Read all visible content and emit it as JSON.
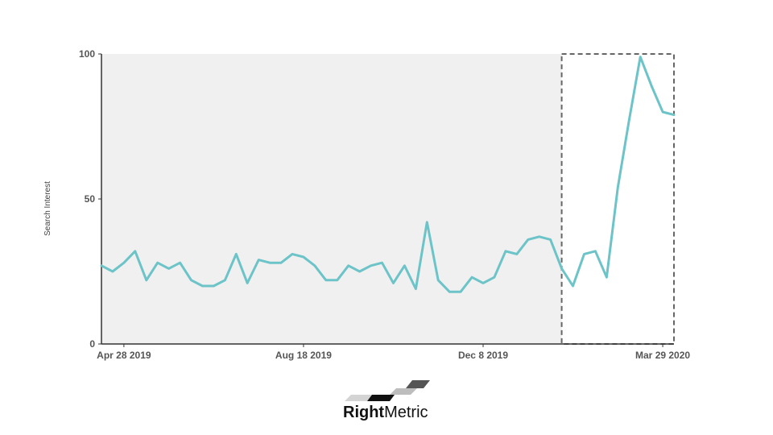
{
  "chart_data": {
    "type": "line",
    "ylabel": "Search Interest",
    "xlabel": "",
    "ylim": [
      0,
      100
    ],
    "yticks": [
      0,
      50,
      100
    ],
    "x_tick_labels": [
      {
        "label": "Apr 28 2019",
        "date": "2019-04-28"
      },
      {
        "label": "Aug 18 2019",
        "date": "2019-08-18"
      },
      {
        "label": "Dec 8 2019",
        "date": "2019-12-08"
      },
      {
        "label": "Mar 29 2020",
        "date": "2020-03-29"
      }
    ],
    "x_range": [
      "2019-04-14",
      "2020-04-05"
    ],
    "grid": false,
    "shaded_region": {
      "from": "2019-04-14",
      "to": "2020-01-26",
      "color": "#f0f0f0"
    },
    "highlight_box": {
      "from": "2020-01-26",
      "to": "2020-04-05",
      "style": "dashed",
      "color": "#666666"
    },
    "series": [
      {
        "color": "#6cc4c8",
        "x": [
          "2019-04-14",
          "2019-04-21",
          "2019-04-28",
          "2019-05-05",
          "2019-05-12",
          "2019-05-19",
          "2019-05-26",
          "2019-06-02",
          "2019-06-09",
          "2019-06-16",
          "2019-06-23",
          "2019-06-30",
          "2019-07-07",
          "2019-07-14",
          "2019-07-21",
          "2019-07-28",
          "2019-08-04",
          "2019-08-11",
          "2019-08-18",
          "2019-08-25",
          "2019-09-01",
          "2019-09-08",
          "2019-09-15",
          "2019-09-22",
          "2019-09-29",
          "2019-10-06",
          "2019-10-13",
          "2019-10-20",
          "2019-10-27",
          "2019-11-03",
          "2019-11-10",
          "2019-11-17",
          "2019-11-24",
          "2019-12-01",
          "2019-12-08",
          "2019-12-15",
          "2019-12-22",
          "2019-12-29",
          "2020-01-05",
          "2020-01-12",
          "2020-01-19",
          "2020-01-26",
          "2020-02-02",
          "2020-02-09",
          "2020-02-16",
          "2020-02-23",
          "2020-03-01",
          "2020-03-08",
          "2020-03-15",
          "2020-03-22",
          "2020-03-29",
          "2020-04-05"
        ],
        "values": [
          27,
          25,
          28,
          32,
          22,
          28,
          26,
          28,
          22,
          20,
          20,
          22,
          31,
          21,
          29,
          28,
          28,
          31,
          30,
          27,
          22,
          22,
          27,
          25,
          27,
          28,
          21,
          27,
          19,
          42,
          22,
          18,
          18,
          23,
          21,
          23,
          32,
          31,
          36,
          37,
          36,
          26,
          20,
          31,
          32,
          23,
          54,
          77,
          99,
          89,
          80,
          79
        ]
      }
    ]
  },
  "brand": {
    "logo": "rightmetric-logo",
    "name_bold": "Right",
    "name_regular": "Metric"
  }
}
